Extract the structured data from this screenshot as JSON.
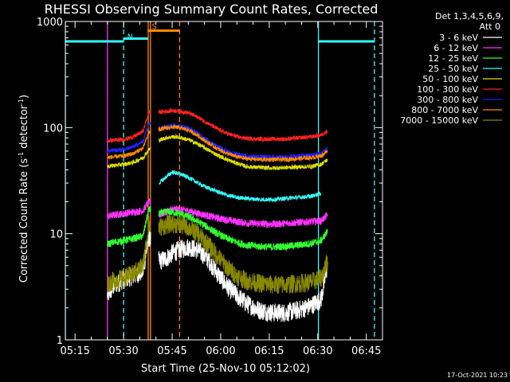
{
  "chart_data": {
    "type": "line",
    "title": "RHESSI Observing Summary Count Rates, Corrected",
    "xlabel": "Start Time (25-Nov-10 05:12:02)",
    "ylabel_main": "Corrected Count Rate (s",
    "ylabel_sup1": "-1",
    "ylabel_mid": " detector",
    "ylabel_sup2": "-1",
    "ylabel_end": ")",
    "yscale": "log",
    "ylim": [
      1,
      1000
    ],
    "xlim_minutes": [
      312,
      410
    ],
    "x_ticks": [
      {
        "label": "05:15",
        "min": 315
      },
      {
        "label": "05:30",
        "min": 330
      },
      {
        "label": "05:45",
        "min": 345
      },
      {
        "label": "06:00",
        "min": 360
      },
      {
        "label": "06:15",
        "min": 375
      },
      {
        "label": "06:30",
        "min": 390
      },
      {
        "label": "06:45",
        "min": 405
      }
    ],
    "y_ticks": [
      {
        "label": "1",
        "value": 1
      },
      {
        "label": "10",
        "value": 10
      },
      {
        "label": "100",
        "value": 100
      },
      {
        "label": "1000",
        "value": 1000
      }
    ],
    "legend": {
      "header1": "Det 1,3,4,5,6,9,",
      "header2": "Att 0",
      "position": "top-right"
    },
    "series": [
      {
        "name": "3 - 6 keV",
        "color": "#ffffff",
        "mins": [
          325,
          327,
          330,
          333,
          336,
          337.8,
          341,
          343,
          345,
          347,
          350,
          353,
          356,
          359,
          362,
          365,
          368,
          372,
          376,
          380,
          384,
          388,
          391,
          393
        ],
        "values": [
          2.6,
          3.2,
          3.7,
          4.0,
          4.4,
          9.5,
          5.5,
          5.8,
          6.5,
          7.0,
          7.5,
          7.0,
          5.8,
          4.2,
          3.2,
          2.6,
          2.2,
          1.9,
          1.8,
          1.8,
          1.9,
          2.1,
          2.4,
          5.0
        ]
      },
      {
        "name": "6 - 12 keV",
        "color": "#ff33ff",
        "mins": [
          325,
          327,
          330,
          333,
          336,
          337.8,
          341,
          343,
          345,
          347,
          350,
          353,
          356,
          359,
          362,
          365,
          368,
          372,
          376,
          380,
          384,
          388,
          391,
          393
        ],
        "values": [
          14.5,
          15.0,
          15.5,
          16.0,
          16.5,
          20.0,
          15.0,
          16.0,
          17.0,
          17.0,
          16.5,
          15.5,
          14.8,
          14.0,
          13.5,
          13.0,
          12.6,
          12.4,
          12.3,
          12.5,
          12.8,
          13.0,
          13.2,
          15.0
        ]
      },
      {
        "name": "12 - 25 keV",
        "color": "#33ff33",
        "mins": [
          325,
          327,
          330,
          333,
          336,
          337.8,
          341,
          343,
          345,
          347,
          350,
          353,
          356,
          359,
          362,
          365,
          368,
          372,
          376,
          380,
          384,
          388,
          391,
          393
        ],
        "values": [
          8.0,
          8.3,
          8.6,
          9.0,
          9.5,
          17.0,
          15.5,
          16.0,
          16.0,
          15.5,
          14.5,
          13.0,
          11.5,
          10.0,
          9.0,
          8.3,
          7.8,
          7.6,
          7.5,
          7.6,
          7.8,
          8.1,
          8.6,
          10.5
        ]
      },
      {
        "name": "25 - 50 keV",
        "color": "#33ffff",
        "mins": [
          341,
          343,
          345,
          347,
          350,
          353,
          356,
          359,
          362,
          365,
          368,
          372,
          376,
          380,
          384,
          388,
          391
        ],
        "values": [
          30,
          34,
          38,
          37,
          34,
          30,
          27,
          25,
          23,
          22,
          21.5,
          21,
          21,
          21.5,
          22,
          22.5,
          24
        ]
      },
      {
        "name": "50 - 100 keV",
        "color": "#dddd00",
        "mins": [
          325,
          327,
          330,
          333,
          336,
          337.8,
          341,
          343,
          345,
          347,
          350,
          353,
          356,
          359,
          362,
          365,
          368,
          372,
          376,
          380,
          384,
          388,
          391,
          393
        ],
        "values": [
          43,
          44,
          45,
          47,
          52,
          62,
          76,
          80,
          82,
          81,
          77,
          70,
          62,
          55,
          50,
          46,
          43,
          42,
          41.5,
          42,
          42.5,
          43,
          45,
          50
        ]
      },
      {
        "name": "100 - 300 keV",
        "color": "#ff2222",
        "mins": [
          325,
          327,
          330,
          333,
          336,
          337.8,
          341,
          343,
          345,
          347,
          350,
          353,
          356,
          359,
          362,
          365,
          368,
          372,
          376,
          380,
          384,
          388,
          391,
          393
        ],
        "values": [
          75,
          76,
          77,
          82,
          92,
          140,
          140,
          142,
          145,
          143,
          138,
          125,
          110,
          97,
          88,
          82,
          79,
          78,
          78,
          78,
          80,
          82,
          85,
          93
        ]
      },
      {
        "name": "300 - 800 keV",
        "color": "#2222ff",
        "mins": [
          325,
          327,
          330,
          333,
          336,
          337.8,
          341,
          343,
          345,
          347,
          350,
          353,
          356,
          359,
          362,
          365,
          368,
          372,
          376,
          380,
          384,
          388,
          391,
          393
        ],
        "values": [
          60,
          61,
          62,
          66,
          74,
          110,
          100,
          103,
          105,
          104,
          99,
          88,
          76,
          67,
          60,
          56,
          54,
          53,
          53,
          53,
          54,
          55,
          57,
          64
        ]
      },
      {
        "name": "800 - 7000 keV",
        "color": "#ff8800",
        "mins": [
          325,
          327,
          330,
          333,
          336,
          337.8,
          341,
          343,
          345,
          347,
          350,
          353,
          356,
          359,
          362,
          365,
          368,
          372,
          376,
          380,
          384,
          388,
          391,
          393
        ],
        "values": [
          52,
          53,
          54,
          57,
          64,
          90,
          96,
          99,
          101,
          100,
          95,
          84,
          72,
          63,
          57,
          53,
          51,
          50,
          50,
          50,
          51,
          52,
          54,
          60
        ]
      },
      {
        "name": "7000 - 15000 keV",
        "color": "#888800",
        "mins": [
          325,
          327,
          330,
          333,
          336,
          337.8,
          341,
          343,
          345,
          347,
          350,
          353,
          356,
          359,
          362,
          365,
          368,
          372,
          376,
          380,
          384,
          388,
          391,
          393
        ],
        "values": [
          3.4,
          3.6,
          3.8,
          4.2,
          5.0,
          12.0,
          11.5,
          12.0,
          12.5,
          12.2,
          11.5,
          10.0,
          8.0,
          6.2,
          4.8,
          4.0,
          3.6,
          3.4,
          3.3,
          3.3,
          3.4,
          3.5,
          3.8,
          5.5
        ]
      }
    ],
    "flag_segments": [
      {
        "color": "#33ffff",
        "from": 312,
        "to": 330,
        "value": 650
      },
      {
        "color": "#33ffff",
        "from": 330,
        "to": 337.5,
        "value": 690
      },
      {
        "color": "#ff8800",
        "from": 337.7,
        "to": 347.3,
        "value": 820
      },
      {
        "color": "#33ffff",
        "from": 390.2,
        "to": 407.5,
        "value": 650
      }
    ],
    "vlines": [
      {
        "color": "#33ffff",
        "min": 312,
        "dashed": false
      },
      {
        "color": "#33ffff",
        "min": 330,
        "dashed": true
      },
      {
        "color": "#ff8800",
        "min": 337.6,
        "dashed": false
      },
      {
        "color": "#ff8800",
        "min": 338.3,
        "dashed": false
      },
      {
        "color": "#ff8800",
        "min": 347.3,
        "dashed": true
      },
      {
        "color": "#33ffff",
        "min": 390.2,
        "dashed": false
      },
      {
        "color": "#33ffff",
        "min": 407.5,
        "dashed": true
      },
      {
        "color": "#ff33ff",
        "min": 325,
        "dashed": false
      }
    ],
    "flag_labels": [
      {
        "text": "N",
        "color": "#33ffff",
        "min": 332,
        "value": 680
      },
      {
        "text": "S",
        "color": "#ff8800",
        "min": 339.5,
        "value": 850
      }
    ]
  },
  "footer": {
    "date": "17-Oct-2021 10:23"
  },
  "colors": {
    "background": "#000000",
    "axes": "#ffffff"
  }
}
